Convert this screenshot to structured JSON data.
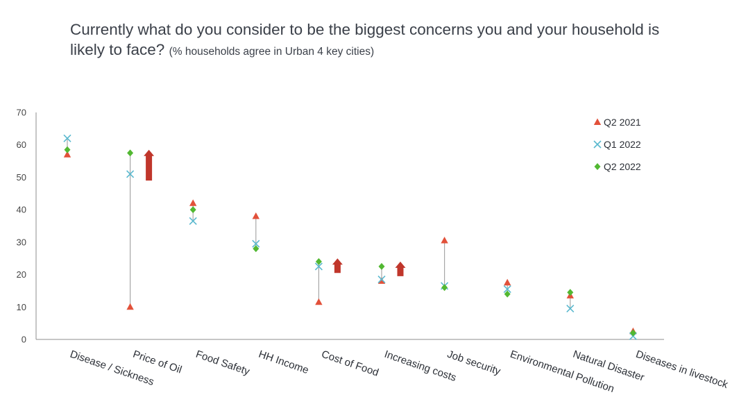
{
  "title": {
    "main": "Currently what do you consider to be the biggest concerns you and your household is likely to face?",
    "sub": "(% households agree in Urban 4 key cities)"
  },
  "colors": {
    "q2_2021": "#e2513a",
    "q1_2022": "#5ab9cf",
    "q2_2022": "#52b832",
    "range_line": "#a6a6a6",
    "arrow": "#c0362b",
    "axis": "#8c8c8c"
  },
  "chart_data": {
    "type": "scatter",
    "title": "Currently what do you consider to be the biggest concerns you and your household is likely to face? (% households agree in Urban 4 key cities)",
    "xlabel": "",
    "ylabel": "",
    "ylim": [
      0,
      70
    ],
    "yticks": [
      0,
      10,
      20,
      30,
      40,
      50,
      60,
      70
    ],
    "grid": false,
    "legend_position": "top-right",
    "categories": [
      "Disease / Sickness",
      "Price of Oil",
      "Food Safety",
      "HH Income",
      "Cost of Food",
      "Increasing costs",
      "Job security",
      "Environmental Pollution",
      "Natural Disaster",
      "Diseases in livestock"
    ],
    "series": [
      {
        "name": "Q2 2021",
        "marker": "triangle",
        "values": [
          57,
          10,
          42,
          38,
          11.5,
          18,
          30.5,
          17.5,
          13.5,
          2.5
        ]
      },
      {
        "name": "Q1 2022",
        "marker": "x",
        "values": [
          62,
          51,
          36.5,
          29.5,
          22.5,
          18.5,
          16.5,
          15.5,
          9.5,
          1
        ]
      },
      {
        "name": "Q2 2022",
        "marker": "diamond",
        "values": [
          58.5,
          57.5,
          40,
          28,
          24,
          22.5,
          16,
          14,
          14.5,
          2
        ]
      }
    ],
    "annotations": [
      {
        "type": "up-arrow",
        "category": "Price of Oil",
        "from": 49,
        "to": 58.5
      },
      {
        "type": "up-arrow",
        "category": "Cost of Food",
        "from": 20.5,
        "to": 25
      },
      {
        "type": "up-arrow",
        "category": "Increasing costs",
        "from": 19.5,
        "to": 24
      }
    ]
  }
}
